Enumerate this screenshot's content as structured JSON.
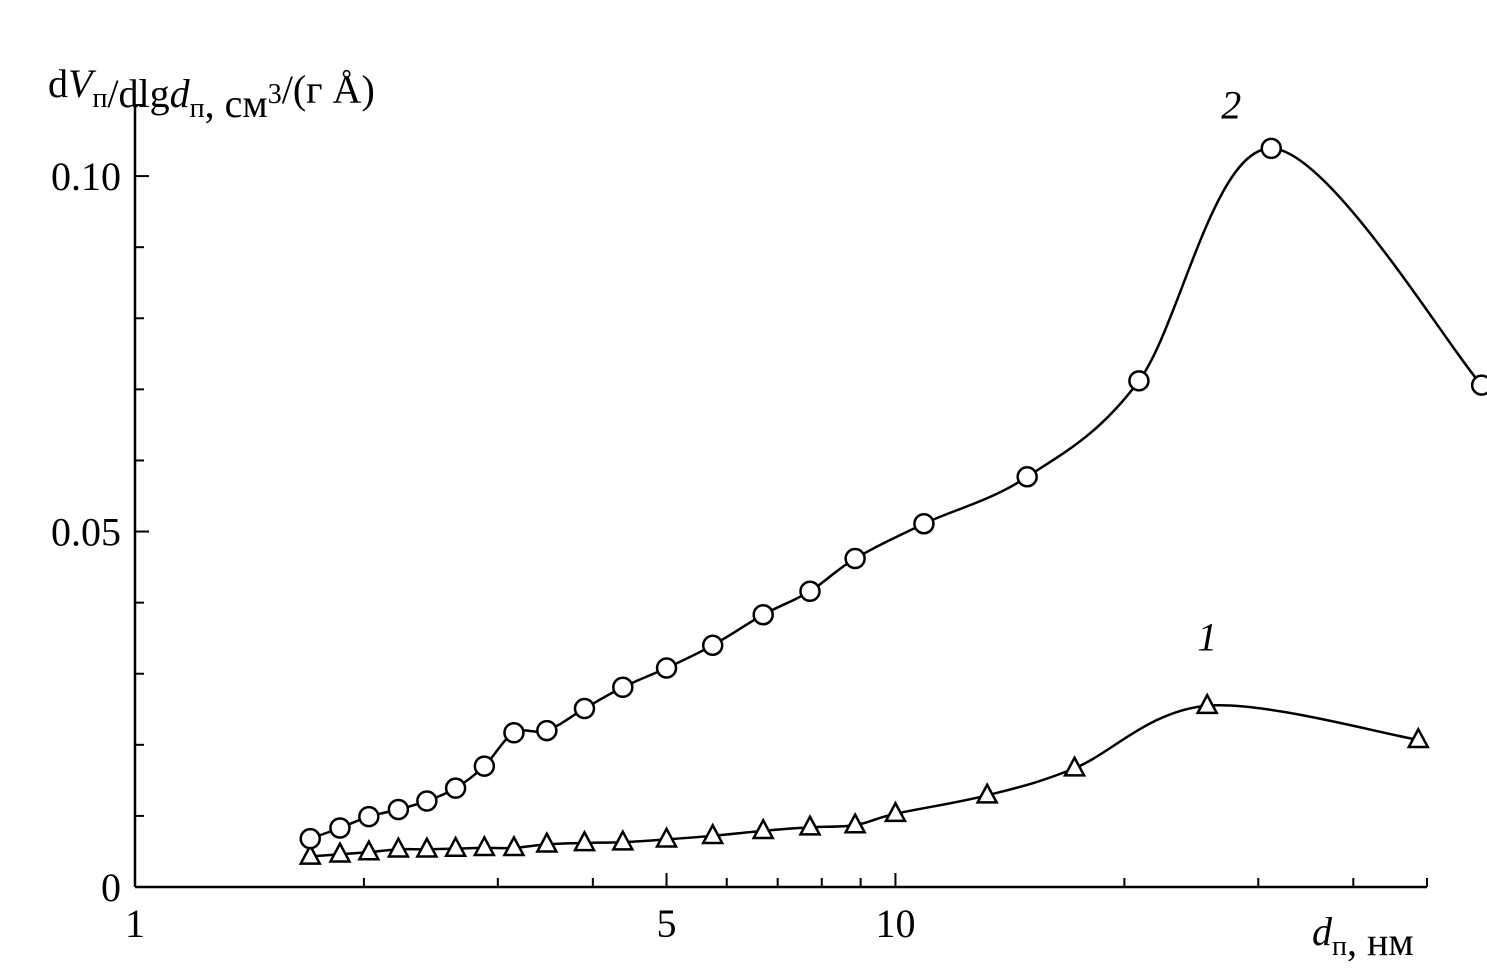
{
  "chart_data": {
    "type": "line",
    "x_scale": "log",
    "xlim": [
      1,
      50
    ],
    "ylim": [
      0,
      0.11
    ],
    "x_ticks_major": [
      1,
      5,
      10
    ],
    "x_tick_labels": [
      "1",
      "5",
      "10"
    ],
    "y_ticks_major": [
      0,
      0.05,
      0.1
    ],
    "y_tick_labels": [
      "0",
      "0.05",
      "0.10"
    ],
    "y_minor_step": 0.01,
    "ylabel": {
      "parts": [
        {
          "t": "d",
          "style": "normal"
        },
        {
          "t": "V",
          "style": "italic"
        },
        {
          "t": "п",
          "style": "sub"
        },
        {
          "t": "/dlg",
          "style": "normal"
        },
        {
          "t": "d",
          "style": "italic"
        },
        {
          "t": "п",
          "style": "sub"
        },
        {
          "t": ", см",
          "style": "normal"
        },
        {
          "t": "3",
          "style": "sup"
        },
        {
          "t": "/(г Å)",
          "style": "normal"
        }
      ]
    },
    "xlabel": {
      "parts": [
        {
          "t": "d",
          "style": "italic"
        },
        {
          "t": "п",
          "style": "sub"
        },
        {
          "t": ", нм",
          "style": "normal"
        }
      ]
    },
    "grid": false,
    "series": [
      {
        "name": "1",
        "marker": "triangle",
        "x": [
          1.7,
          1.86,
          2.03,
          2.22,
          2.42,
          2.64,
          2.88,
          3.15,
          3.48,
          3.9,
          4.38,
          5.0,
          5.75,
          6.7,
          7.72,
          8.85,
          10.0,
          13.2,
          17.2,
          25.7,
          48.7
        ],
        "y": [
          0.0043,
          0.0046,
          0.0049,
          0.0053,
          0.0053,
          0.0054,
          0.0055,
          0.0055,
          0.006,
          0.0062,
          0.0063,
          0.0067,
          0.0072,
          0.0079,
          0.0084,
          0.0087,
          0.0103,
          0.0129,
          0.0167,
          0.0255,
          0.0207
        ]
      },
      {
        "name": "2",
        "marker": "circle",
        "x": [
          1.7,
          1.86,
          2.03,
          2.22,
          2.42,
          2.64,
          2.88,
          3.15,
          3.48,
          3.9,
          4.38,
          5.0,
          5.75,
          6.7,
          7.72,
          8.85,
          10.9,
          14.9,
          20.9,
          31.2,
          59.0
        ],
        "y": [
          0.0068,
          0.0083,
          0.0099,
          0.0109,
          0.0121,
          0.0139,
          0.017,
          0.0217,
          0.022,
          0.0251,
          0.0281,
          0.0308,
          0.034,
          0.0383,
          0.0416,
          0.0462,
          0.0511,
          0.0577,
          0.0712,
          0.1039,
          0.0706
        ]
      }
    ]
  }
}
